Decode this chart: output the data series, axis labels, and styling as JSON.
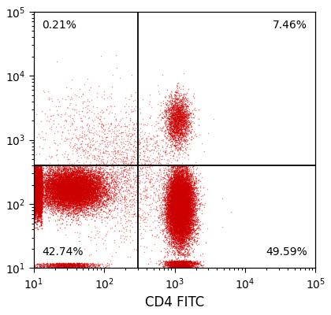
{
  "xlim": [
    10,
    100000
  ],
  "ylim": [
    10,
    100000
  ],
  "xlabel": "CD4 FITC",
  "ylabel": "",
  "gate_x": 300,
  "gate_y": 400,
  "quadrant_labels": {
    "UL": "0.21%",
    "UR": "7.46%",
    "LL": "42.74%",
    "LR": "49.59%"
  },
  "dot_color": "#cc0000",
  "dot_size": 1.2,
  "dot_alpha": 0.55,
  "background_color": "#ffffff",
  "seed": 42
}
